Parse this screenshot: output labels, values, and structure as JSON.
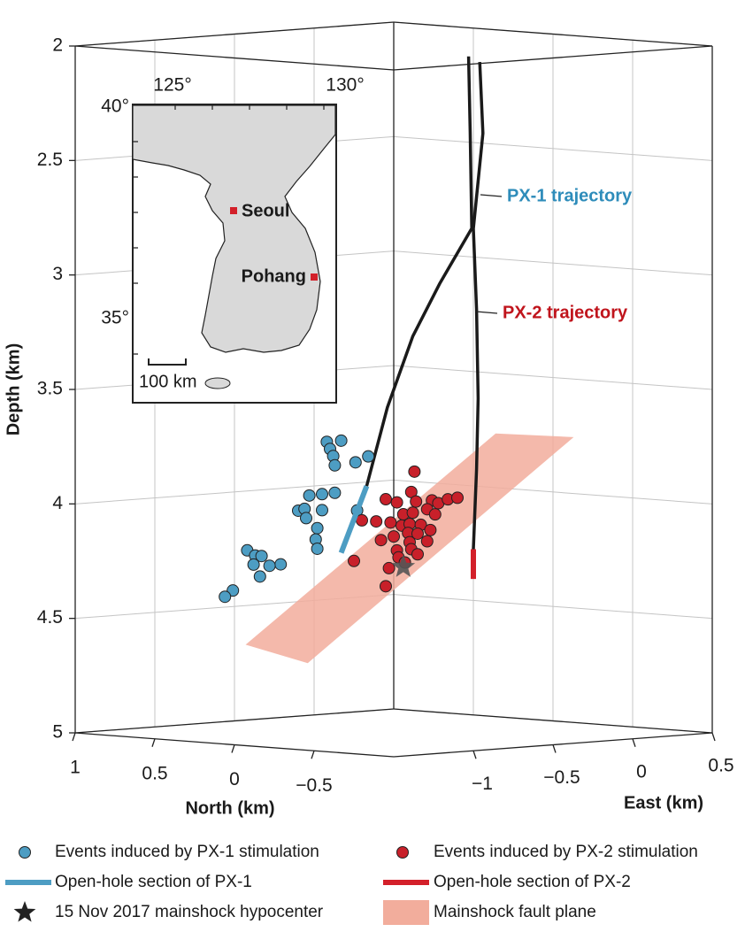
{
  "chart_data": {
    "type": "scatter3d",
    "xlabel": "North (km)",
    "ylabel": "East (km)",
    "zlabel": "Depth (km)",
    "xlim": [
      1,
      -1
    ],
    "ylim": [
      -1.5,
      0.5
    ],
    "zlim": [
      2,
      5
    ],
    "xticks": [
      1,
      0.5,
      0,
      {
        "value": -0.5,
        "label": "−0.5"
      }
    ],
    "yticks": [
      {
        "value": -1,
        "label": "−1"
      },
      {
        "value": -0.5,
        "label": "−0.5"
      },
      0,
      0.5
    ],
    "zticks": [
      2,
      2.5,
      3,
      3.5,
      4,
      4.5,
      5
    ],
    "grid": true,
    "series": [
      {
        "name": "Events induced by PX-1 stimulation",
        "kind": "points",
        "color": "#4d9dc3",
        "x": [
          0.22,
          0.13,
          0.2,
          0.18,
          0.17,
          0.04,
          -0.04,
          0.25,
          0.17,
          0.33,
          0.25,
          0.4,
          0.36,
          0.35,
          0.03,
          0.28,
          0.29,
          0.28,
          0.72,
          0.67,
          0.63,
          0.68,
          0.51,
          0.58,
          0.64,
          0.81,
          0.86
        ],
        "y": [
          -0.7,
          -0.7,
          -0.7,
          -0.7,
          -0.7,
          -0.7,
          -0.7,
          -0.7,
          -0.7,
          -0.7,
          -0.7,
          -0.7,
          -0.7,
          -0.7,
          -0.7,
          -0.7,
          -0.7,
          -0.7,
          -0.7,
          -0.7,
          -0.7,
          -0.7,
          -0.7,
          -0.7,
          -0.7,
          -0.7,
          -0.7
        ],
        "z": [
          3.73,
          3.72,
          3.76,
          3.79,
          3.83,
          3.81,
          3.78,
          3.96,
          3.95,
          3.97,
          4.03,
          4.04,
          4.03,
          4.07,
          4.02,
          4.11,
          4.16,
          4.2,
          4.23,
          4.25,
          4.25,
          4.29,
          4.28,
          4.29,
          4.34,
          4.41,
          4.44
        ]
      },
      {
        "name": "Open-hole section of PX-1",
        "kind": "line",
        "color": "#4d9dc3",
        "x": [
          -0.03,
          0.13
        ],
        "y": [
          -0.7,
          -0.7
        ],
        "z": [
          3.91,
          4.21
        ]
      },
      {
        "name": "15 Nov 2017 mainshock hypocenter",
        "kind": "star",
        "color": "#555555",
        "x": [
          -0.56
        ],
        "y": [
          -1
        ],
        "z": [
          4.22
        ]
      },
      {
        "name": "Events induced by PX-2 stimulation",
        "kind": "points",
        "color": "#c8202a",
        "x": [
          -0.63,
          -0.3,
          -0.39,
          -0.45,
          -0.52,
          -0.61,
          -0.64,
          -0.74,
          -0.78,
          -0.84,
          -0.9,
          -0.56,
          -0.62,
          -0.71,
          -0.76,
          -0.48,
          -0.55,
          -0.6,
          -0.67,
          -0.42,
          -0.5,
          -0.59,
          -0.65,
          -0.73,
          -0.52,
          -0.6,
          -0.53,
          -0.61,
          -0.25,
          -0.71,
          -0.47,
          -0.45,
          -0.65,
          -0.57
        ],
        "y": [
          -1,
          -1,
          -1,
          -1,
          -1,
          -1,
          -1,
          -1,
          -1,
          -1,
          -1,
          -1,
          -1,
          -1,
          -1,
          -1,
          -1,
          -1,
          -1,
          -1,
          -1,
          -1,
          -1,
          -1,
          -1,
          -1,
          -1,
          -1,
          -1,
          -1,
          -1,
          -1,
          -1,
          -1
        ],
        "z": [
          3.8,
          4.03,
          4.03,
          3.93,
          3.94,
          3.89,
          3.93,
          3.92,
          3.93,
          3.91,
          3.9,
          3.99,
          3.98,
          3.96,
          3.98,
          4.03,
          4.04,
          4.03,
          4.03,
          4.11,
          4.09,
          4.07,
          4.07,
          4.05,
          4.15,
          4.11,
          4.18,
          4.14,
          4.21,
          4.1,
          4.23,
          4.31,
          4.16,
          4.2
        ]
      },
      {
        "name": "Open-hole section of PX-2",
        "kind": "line",
        "color": "#d3202a",
        "x": [
          -0.9,
          -0.9
        ],
        "y": [
          -0.9,
          -0.9
        ],
        "z": [
          4.13,
          4.26
        ]
      },
      {
        "name": "Mainshock fault plane",
        "kind": "polygon",
        "color": "#f2ad9c",
        "x": [
          0.13,
          -0.26,
          -0.93,
          -0.44
        ],
        "y": [
          -1.3,
          -1.3,
          -0.3,
          -0.3
        ],
        "z": [
          4.58,
          4.64,
          3.67,
          3.68
        ]
      }
    ],
    "trajectories": [
      {
        "label": "PX-1 trajectory",
        "color": "#2e8cba",
        "x": [
          -0.67,
          -0.68,
          -0.69,
          -0.49,
          -0.32,
          -0.16,
          -0.03
        ],
        "y": [
          -0.7,
          -0.7,
          -0.7,
          -0.7,
          -0.7,
          -0.7,
          -0.7
        ],
        "z": [
          2,
          2.33,
          2.75,
          3,
          3.24,
          3.56,
          3.91
        ]
      },
      {
        "label": "PX-2 trajectory",
        "color": "#c0141c",
        "x": [
          -0.94,
          -0.96,
          -0.9,
          -0.92,
          -0.93,
          -0.92,
          -0.9
        ],
        "y": [
          -0.9,
          -0.9,
          -0.9,
          -0.9,
          -0.9,
          -0.9,
          -0.9
        ],
        "z": [
          2,
          2.31,
          2.73,
          3.08,
          3.47,
          3.78,
          4.13
        ]
      }
    ]
  },
  "inset": {
    "lon_labels": [
      "125°",
      "130°"
    ],
    "lat_labels": [
      "40°",
      "35°"
    ],
    "cities": [
      "Seoul",
      "Pohang"
    ],
    "scale_label": "100 km"
  }
}
